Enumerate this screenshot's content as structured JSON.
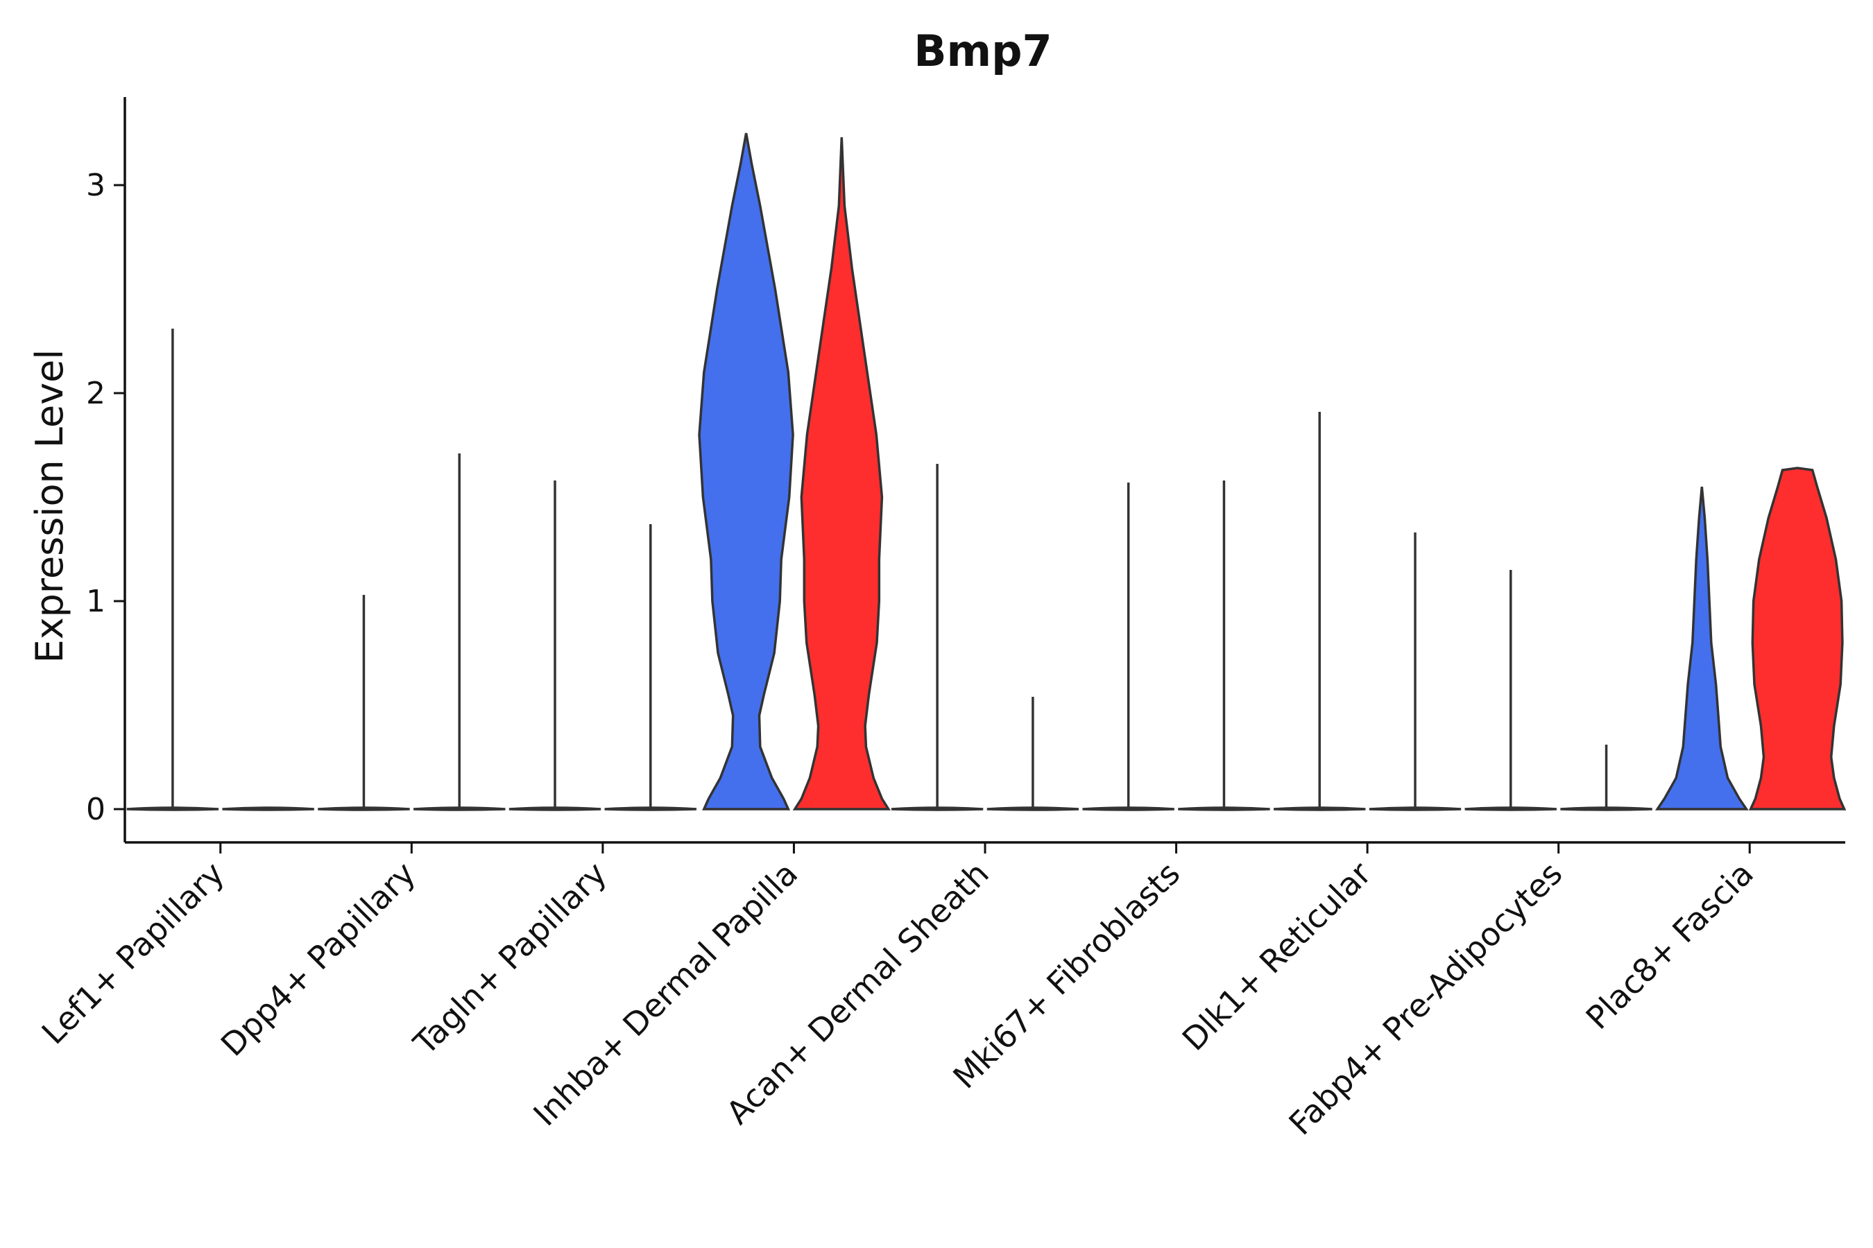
{
  "chart_data": {
    "type": "violin",
    "title": "Bmp7",
    "xlabel": "",
    "ylabel": "Expression Level",
    "ylim": [
      -0.16,
      3.4
    ],
    "yticks": [
      0,
      1,
      2,
      3
    ],
    "grid": false,
    "legend": "none",
    "colors": {
      "group_a": "#4470EE",
      "group_b": "#FF2E2E",
      "outline": "#333333"
    },
    "categories": [
      "Lef1+ Papillary",
      "Dpp4+ Papillary",
      "Tagln+ Papillary",
      "Inhba+ Dermal Papilla",
      "Acan+ Dermal Sheath",
      "Mki67+ Fibroblasts",
      "Dlk1+ Reticular",
      "Fabp4+ Pre-Adipocytes",
      "Plac8+ Fascia"
    ],
    "series": [
      {
        "name": "group_a",
        "max": [
          2.31,
          1.03,
          1.58,
          3.25,
          1.66,
          1.57,
          1.91,
          1.15,
          1.55
        ],
        "profiles": [
          null,
          null,
          null,
          [
            [
              0,
              0.9
            ],
            [
              0.05,
              0.8
            ],
            [
              0.15,
              0.55
            ],
            [
              0.3,
              0.3
            ],
            [
              0.45,
              0.28
            ],
            [
              0.55,
              0.38
            ],
            [
              0.75,
              0.6
            ],
            [
              1.0,
              0.72
            ],
            [
              1.2,
              0.75
            ],
            [
              1.5,
              0.92
            ],
            [
              1.8,
              1.0
            ],
            [
              2.1,
              0.9
            ],
            [
              2.5,
              0.62
            ],
            [
              2.9,
              0.3
            ],
            [
              3.1,
              0.12
            ],
            [
              3.25,
              0
            ]
          ],
          null,
          null,
          null,
          null,
          [
            [
              0,
              0.95
            ],
            [
              0.05,
              0.8
            ],
            [
              0.15,
              0.55
            ],
            [
              0.3,
              0.4
            ],
            [
              0.45,
              0.35
            ],
            [
              0.6,
              0.3
            ],
            [
              0.8,
              0.2
            ],
            [
              1.0,
              0.16
            ],
            [
              1.2,
              0.12
            ],
            [
              1.4,
              0.06
            ],
            [
              1.55,
              0
            ]
          ]
        ]
      },
      {
        "name": "group_b",
        "max": [
          0,
          1.71,
          1.37,
          3.23,
          0.54,
          1.58,
          1.33,
          0.31,
          1.64
        ],
        "profiles": [
          null,
          null,
          null,
          [
            [
              0,
              1.0
            ],
            [
              0.05,
              0.86
            ],
            [
              0.15,
              0.68
            ],
            [
              0.3,
              0.52
            ],
            [
              0.4,
              0.5
            ],
            [
              0.55,
              0.58
            ],
            [
              0.8,
              0.75
            ],
            [
              1.0,
              0.8
            ],
            [
              1.2,
              0.8
            ],
            [
              1.5,
              0.86
            ],
            [
              1.8,
              0.74
            ],
            [
              2.2,
              0.48
            ],
            [
              2.6,
              0.22
            ],
            [
              2.9,
              0.06
            ],
            [
              3.23,
              0
            ]
          ],
          null,
          null,
          null,
          null,
          [
            [
              0,
              1.0
            ],
            [
              0.05,
              0.9
            ],
            [
              0.15,
              0.78
            ],
            [
              0.25,
              0.72
            ],
            [
              0.4,
              0.78
            ],
            [
              0.6,
              0.92
            ],
            [
              0.8,
              0.96
            ],
            [
              1.0,
              0.94
            ],
            [
              1.2,
              0.82
            ],
            [
              1.4,
              0.62
            ],
            [
              1.55,
              0.42
            ],
            [
              1.63,
              0.32
            ],
            [
              1.64,
              0
            ]
          ]
        ]
      }
    ]
  }
}
